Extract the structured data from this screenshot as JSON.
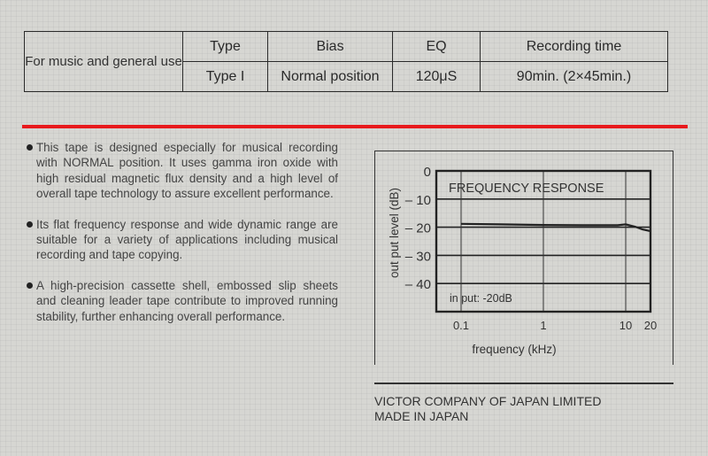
{
  "spec_table": {
    "use": "For music and general use",
    "headers": [
      "Type",
      "Bias",
      "EQ",
      "Recording time"
    ],
    "values": [
      "Type I",
      "Normal position",
      "120μS",
      "90min. (2×45min.)"
    ]
  },
  "accent_color": "#e8191c",
  "bullets": [
    "This tape is designed especially for musical recording with NORMAL position. It uses gamma iron oxide with high residual magnetic flux density and a high level of overall tape technology to assure excellent performance.",
    "Its flat frequency response and wide dynamic range are suitable for a variety of applications including musical recording and tape copying.",
    "A high-precision cassette shell, embossed slip sheets and cleaning leader tape contribute to improved running stability, further enhancing overall performance."
  ],
  "chart_data": {
    "type": "line",
    "title": "FREQUENCY RESPONSE",
    "xlabel": "frequency (kHz)",
    "ylabel": "out put level (dB)",
    "annotation": "in put: -20dB",
    "xscale": "log",
    "xlim": [
      0.05,
      20
    ],
    "ylim": [
      -50,
      0
    ],
    "xticks": [
      0.1,
      1,
      10,
      20
    ],
    "xtick_labels": [
      "0.1",
      "1",
      "10",
      "20"
    ],
    "yticks": [
      0,
      -10,
      -20,
      -30,
      -40
    ],
    "ytick_labels": [
      "0",
      "– 10",
      "– 20",
      "– 30",
      "– 40"
    ],
    "grid": true,
    "series": [
      {
        "x": [
          0.1,
          0.3,
          1,
          3,
          8,
          10,
          13,
          16,
          20
        ],
        "y": [
          -18.8,
          -19.0,
          -19.2,
          -19.3,
          -19.3,
          -19.0,
          -19.8,
          -20.8,
          -21.4
        ]
      }
    ]
  },
  "footer": {
    "company": "VICTOR COMPANY OF JAPAN LIMITED",
    "origin": "MADE IN JAPAN"
  }
}
